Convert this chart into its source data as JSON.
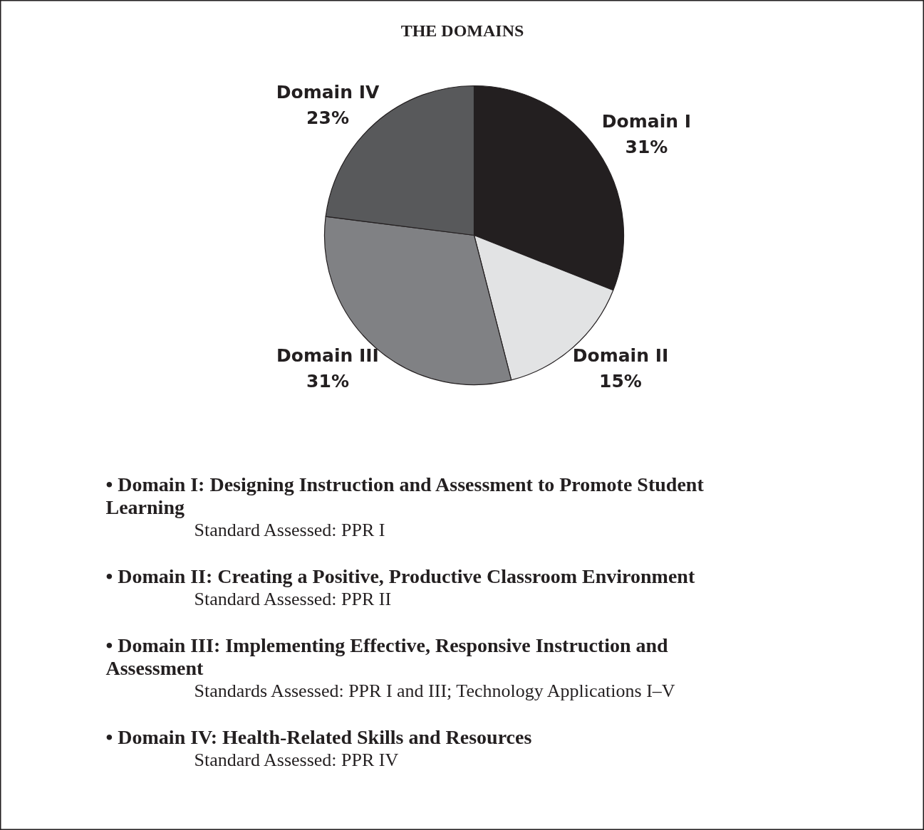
{
  "chart_data": {
    "type": "pie",
    "title": "THE DOMAINS",
    "categories": [
      "Domain I",
      "Domain II",
      "Domain III",
      "Domain IV"
    ],
    "values": [
      31,
      15,
      31,
      23
    ],
    "value_labels": [
      "31%",
      "15%",
      "31%",
      "23%"
    ],
    "colors": [
      "#231f20",
      "#e2e3e4",
      "#808184",
      "#58595b"
    ],
    "legend": false,
    "annotations": [
      "• Domain I: Designing Instruction and Assessment to Promote Student Learning",
      "Standard Assessed: PPR I",
      "• Domain II: Creating a Positive, Productive Classroom Environment",
      "Standard Assessed: PPR II",
      "• Domain III: Implementing Effective, Responsive Instruction and Assessment",
      "Standards Assessed: PPR I and III; Technology Applications I–V",
      "• Domain IV: Health-Related Skills and Resources",
      "Standard Assessed: PPR IV"
    ]
  }
}
